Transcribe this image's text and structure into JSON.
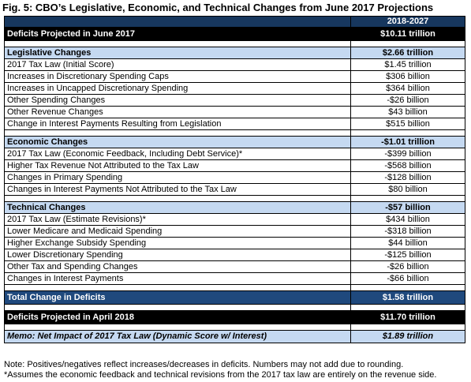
{
  "title": "Fig. 5: CBO’s Legislative, Economic, and Technical Changes from June 2017 Projections",
  "column_header": "2018-2027",
  "deficits_june": {
    "label": "Deficits Projected in June 2017",
    "value": "$10.11 trillion"
  },
  "sections": [
    {
      "label": "Legislative Changes",
      "total": "$2.66 trillion",
      "rows": [
        {
          "label": "2017 Tax Law (Initial Score)",
          "value": "$1.45 trillion"
        },
        {
          "label": "Increases in Discretionary Spending Caps",
          "value": "$306 billion"
        },
        {
          "label": "Increases in Uncapped Discretionary Spending",
          "value": "$364 billion"
        },
        {
          "label": "Other Spending Changes",
          "value": "-$26 billion"
        },
        {
          "label": "Other Revenue Changes",
          "value": "$43 billion"
        },
        {
          "label": "Change in Interest Payments Resulting from Legislation",
          "value": "$515 billion"
        }
      ]
    },
    {
      "label": "Economic Changes",
      "total": "-$1.01 trillion",
      "rows": [
        {
          "label": "2017 Tax Law (Economic Feedback, Including Debt Service)*",
          "value": "-$399 billion"
        },
        {
          "label": "Higher Tax Revenue Not Attributed to the Tax Law",
          "value": "-$568 billion"
        },
        {
          "label": "Changes in Primary Spending",
          "value": "-$128 billion"
        },
        {
          "label": "Changes in Interest Payments Not Attributed to the Tax Law",
          "value": "$80 billion"
        }
      ]
    },
    {
      "label": "Technical Changes",
      "total": "-$57 billion",
      "rows": [
        {
          "label": "2017 Tax Law (Estimate Revisions)*",
          "value": "$434 billion"
        },
        {
          "label": "Lower Medicare and Medicaid Spending",
          "value": "-$318 billion"
        },
        {
          "label": "Higher Exchange Subsidy Spending",
          "value": "$44 billion"
        },
        {
          "label": "Lower Discretionary Spending",
          "value": "-$125 billion"
        },
        {
          "label": "Other Tax and Spending Changes",
          "value": "-$26 billion"
        },
        {
          "label": "Changes in Interest Payments",
          "value": "-$66 billion"
        }
      ]
    }
  ],
  "total_change": {
    "label": "Total Change in Deficits",
    "value": "$1.58 trillion"
  },
  "deficits_april": {
    "label": "Deficits Projected in April 2018",
    "value": "$11.70 trillion"
  },
  "memo": {
    "label": "Memo: Net Impact of 2017 Tax Law (Dynamic Score w/ Interest)",
    "value": "$1.89 trillion"
  },
  "notes": [
    "Note: Positives/negatives reflect increases/decreases in deficits. Numbers may not add due to rounding.",
    "*Assumes the economic feedback and technical revisions from the 2017 tax law are entirely on the revenue side."
  ]
}
